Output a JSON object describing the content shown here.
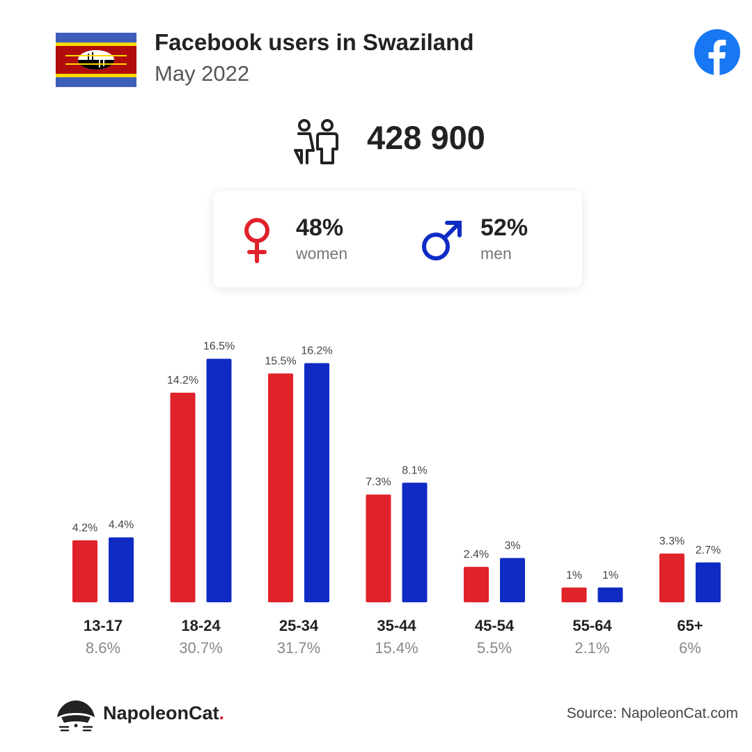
{
  "header": {
    "title": "Facebook users in Swaziland",
    "subtitle": "May 2022"
  },
  "total_users": "428 900",
  "gender": {
    "women": {
      "value": "48%",
      "label": "women"
    },
    "men": {
      "value": "52%",
      "label": "men"
    }
  },
  "colors": {
    "women": "#e0222a",
    "men": "#0f2bc4",
    "facebook": "#1877f2"
  },
  "chart_data": {
    "type": "bar",
    "categories": [
      "13-17",
      "18-24",
      "25-34",
      "35-44",
      "45-54",
      "55-64",
      "65+"
    ],
    "category_totals": [
      "8.6%",
      "30.7%",
      "31.7%",
      "15.4%",
      "5.5%",
      "2.1%",
      "6%"
    ],
    "series": [
      {
        "name": "women",
        "values": [
          4.2,
          14.2,
          15.5,
          7.3,
          2.4,
          1,
          3.3
        ],
        "labels": [
          "4.2%",
          "14.2%",
          "15.5%",
          "7.3%",
          "2.4%",
          "1%",
          "3.3%"
        ]
      },
      {
        "name": "men",
        "values": [
          4.4,
          16.5,
          16.2,
          8.1,
          3,
          1,
          2.7
        ],
        "labels": [
          "4.4%",
          "16.5%",
          "16.2%",
          "8.1%",
          "3%",
          "1%",
          "2.7%"
        ]
      }
    ]
  },
  "footer": {
    "brand": "NapoleonCat",
    "brand_dot": ".",
    "source": "Source: NapoleonCat.com"
  }
}
